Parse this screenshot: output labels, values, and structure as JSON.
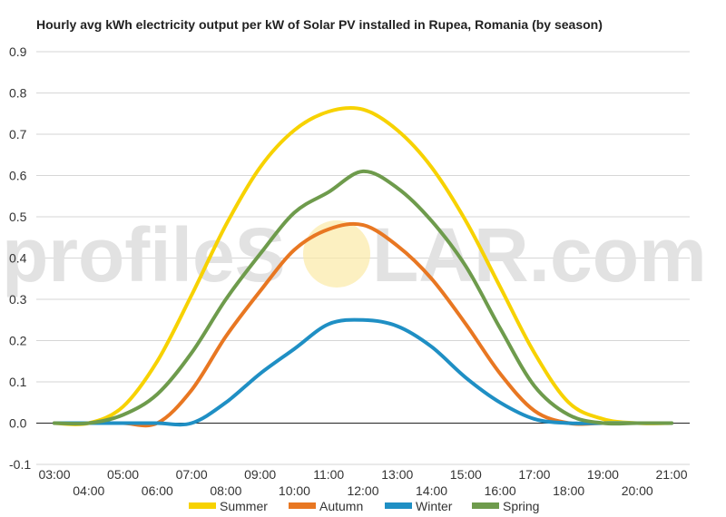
{
  "watermark": {
    "before": "profileS",
    "after": "LAR.com"
  },
  "chart_data": {
    "type": "line",
    "title": "Hourly avg kWh electricity output per kW of Solar PV installed in Rupea, Romania (by season)",
    "xlabel": "",
    "ylabel": "",
    "ylim": [
      -0.1,
      0.9
    ],
    "yticks": [
      "-0.1",
      "0.0",
      "0.1",
      "0.2",
      "0.3",
      "0.4",
      "0.5",
      "0.6",
      "0.7",
      "0.8",
      "0.9"
    ],
    "xtick_labels": [
      "03:00",
      "04:00",
      "05:00",
      "06:00",
      "07:00",
      "08:00",
      "09:00",
      "10:00",
      "11:00",
      "12:00",
      "13:00",
      "14:00",
      "15:00",
      "16:00",
      "17:00",
      "18:00",
      "19:00",
      "20:00",
      "21:00"
    ],
    "grid": true,
    "legend_position": "bottom",
    "x": [
      "03:00",
      "04:00",
      "05:00",
      "06:00",
      "07:00",
      "08:00",
      "09:00",
      "10:00",
      "11:00",
      "12:00",
      "13:00",
      "14:00",
      "15:00",
      "16:00",
      "17:00",
      "18:00",
      "19:00",
      "20:00",
      "21:00"
    ],
    "series": [
      {
        "name": "Summer",
        "color": "#f7d200",
        "values": [
          0.0,
          0.0,
          0.04,
          0.15,
          0.31,
          0.48,
          0.62,
          0.71,
          0.755,
          0.76,
          0.71,
          0.62,
          0.49,
          0.33,
          0.17,
          0.05,
          0.01,
          0.0,
          0.0
        ]
      },
      {
        "name": "Autumn",
        "color": "#e87722",
        "values": [
          0.0,
          0.0,
          0.0,
          0.0,
          0.08,
          0.21,
          0.32,
          0.42,
          0.47,
          0.48,
          0.43,
          0.35,
          0.24,
          0.12,
          0.03,
          0.0,
          0.0,
          0.0,
          0.0
        ]
      },
      {
        "name": "Winter",
        "color": "#1f8fc4",
        "values": [
          0.0,
          0.0,
          0.0,
          0.0,
          0.0,
          0.05,
          0.12,
          0.18,
          0.24,
          0.25,
          0.235,
          0.185,
          0.11,
          0.05,
          0.01,
          0.0,
          0.0,
          0.0,
          0.0
        ]
      },
      {
        "name": "Spring",
        "color": "#6e9b4c",
        "values": [
          0.0,
          0.0,
          0.02,
          0.07,
          0.17,
          0.3,
          0.41,
          0.51,
          0.56,
          0.61,
          0.57,
          0.49,
          0.38,
          0.23,
          0.09,
          0.02,
          0.0,
          0.0,
          0.0
        ]
      }
    ]
  }
}
